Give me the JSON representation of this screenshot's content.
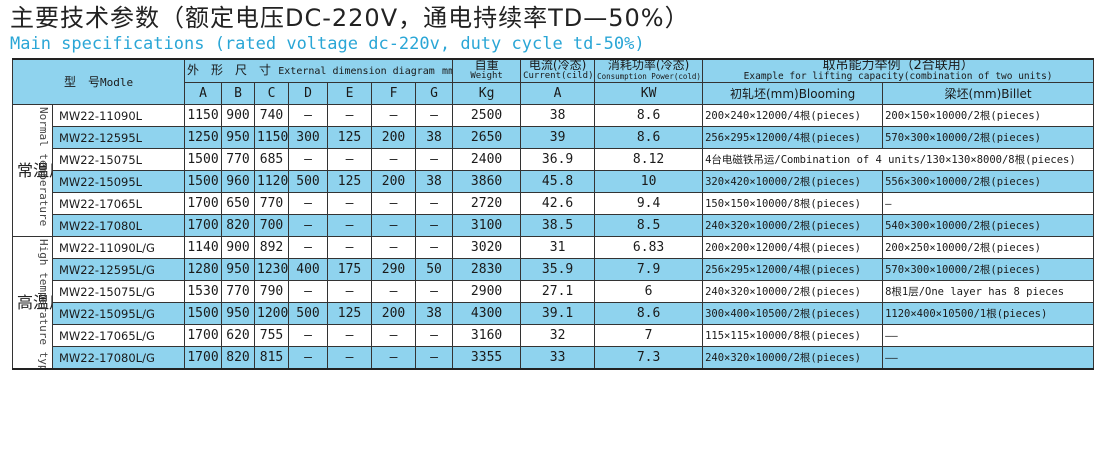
{
  "title_cn": "主要技术参数（额定电压DC-220V，通电持续率TD—50%）",
  "title_en": "Main specifications (rated voltage dc-220v, duty cycle td-50%)",
  "header": {
    "model_cn": "型　号",
    "model_en": "Modle",
    "dim_cn": "外　形　尺　寸",
    "dim_en": "External dimension diagram",
    "dim_unit": "mm",
    "weight_cn": "自重",
    "weight_en": "Weight",
    "weight_unit": "Kg",
    "current_cn": "电流(冷态)",
    "current_en": "Current(cild)",
    "current_unit": "A",
    "power_cn": "消耗功率(冷态)",
    "power_en": "Consumption Power(cold)",
    "power_unit": "KW",
    "lift_cn": "取吊能力举例（2合联用）",
    "lift_en": "Example for lifting capacity(combination of two units)",
    "blooming": "初轧坯(mm)Blooming",
    "billet": "梁坯(mm)Billet",
    "dims": [
      "A",
      "B",
      "C",
      "D",
      "E",
      "F",
      "G"
    ]
  },
  "groups": [
    {
      "label_cn": "常温用",
      "label_en": "Normal temperature",
      "rows": [
        {
          "model": "MW22-11090L",
          "A": "1150",
          "B": "900",
          "C": "740",
          "D": "—",
          "E": "—",
          "F": "—",
          "G": "—",
          "weight": "2500",
          "current": "38",
          "power": "8.6",
          "blooming": "200×240×12000/4根(pieces)",
          "billet": "200×150×10000/2根(pieces)"
        },
        {
          "model": "MW22-12595L",
          "A": "1250",
          "B": "950",
          "C": "1150",
          "D": "300",
          "E": "125",
          "F": "200",
          "G": "38",
          "weight": "2650",
          "current": "39",
          "power": "8.6",
          "blooming": "256×295×12000/4根(pieces)",
          "billet": "570×300×10000/2根(pieces)"
        },
        {
          "model": "MW22-15075L",
          "A": "1500",
          "B": "770",
          "C": "685",
          "D": "—",
          "E": "—",
          "F": "—",
          "G": "—",
          "weight": "2400",
          "current": "36.9",
          "power": "8.12",
          "merged": "4台电磁铁吊运/Combination of 4 units/130×130×8000/8根(pieces)"
        },
        {
          "model": "MW22-15095L",
          "A": "1500",
          "B": "960",
          "C": "1120",
          "D": "500",
          "E": "125",
          "F": "200",
          "G": "38",
          "weight": "3860",
          "current": "45.8",
          "power": "10",
          "blooming": "320×420×10000/2根(pieces)",
          "billet": "556×300×10000/2根(pieces)"
        },
        {
          "model": "MW22-17065L",
          "A": "1700",
          "B": "650",
          "C": "770",
          "D": "—",
          "E": "—",
          "F": "—",
          "G": "—",
          "weight": "2720",
          "current": "42.6",
          "power": "9.4",
          "blooming": "150×150×10000/8根(pieces)",
          "billet": "—"
        },
        {
          "model": "MW22-17080L",
          "A": "1700",
          "B": "820",
          "C": "700",
          "D": "—",
          "E": "—",
          "F": "—",
          "G": "—",
          "weight": "3100",
          "current": "38.5",
          "power": "8.5",
          "blooming": "240×320×10000/2根(pieces)",
          "billet": "540×300×10000/2根(pieces)"
        }
      ]
    },
    {
      "label_cn": "高温用",
      "label_en": "High temperature type",
      "rows": [
        {
          "model": "MW22-11090L/G",
          "A": "1140",
          "B": "900",
          "C": "892",
          "D": "—",
          "E": "—",
          "F": "—",
          "G": "—",
          "weight": "3020",
          "current": "31",
          "power": "6.83",
          "blooming": "200×200×12000/4根(pieces)",
          "billet": "200×250×10000/2根(pieces)"
        },
        {
          "model": "MW22-12595L/G",
          "A": "1280",
          "B": "950",
          "C": "1230",
          "D": "400",
          "E": "175",
          "F": "290",
          "G": "50",
          "weight": "2830",
          "current": "35.9",
          "power": "7.9",
          "blooming": "256×295×12000/4根(pieces)",
          "billet": "570×300×10000/2根(pieces)"
        },
        {
          "model": "MW22-15075L/G",
          "A": "1530",
          "B": "770",
          "C": "790",
          "D": "—",
          "E": "—",
          "F": "—",
          "G": "—",
          "weight": "2900",
          "current": "27.1",
          "power": "6",
          "blooming": "240×320×10000/2根(pieces)",
          "billet": "8根1层/One layer has 8 pieces"
        },
        {
          "model": "MW22-15095L/G",
          "A": "1500",
          "B": "950",
          "C": "1200",
          "D": "500",
          "E": "125",
          "F": "200",
          "G": "38",
          "weight": "4300",
          "current": "39.1",
          "power": "8.6",
          "blooming": "300×400×10500/2根(pieces)",
          "billet": "1120×400×10500/1根(pieces)"
        },
        {
          "model": "MW22-17065L/G",
          "A": "1700",
          "B": "620",
          "C": "755",
          "D": "—",
          "E": "—",
          "F": "—",
          "G": "—",
          "weight": "3160",
          "current": "32",
          "power": "7",
          "blooming": "115×115×10000/8根(pieces)",
          "billet": "——"
        },
        {
          "model": "MW22-17080L/G",
          "A": "1700",
          "B": "820",
          "C": "815",
          "D": "—",
          "E": "—",
          "F": "—",
          "G": "—",
          "weight": "3355",
          "current": "33",
          "power": "7.3",
          "blooming": "240×320×10000/2根(pieces)",
          "billet": "——"
        }
      ]
    }
  ]
}
